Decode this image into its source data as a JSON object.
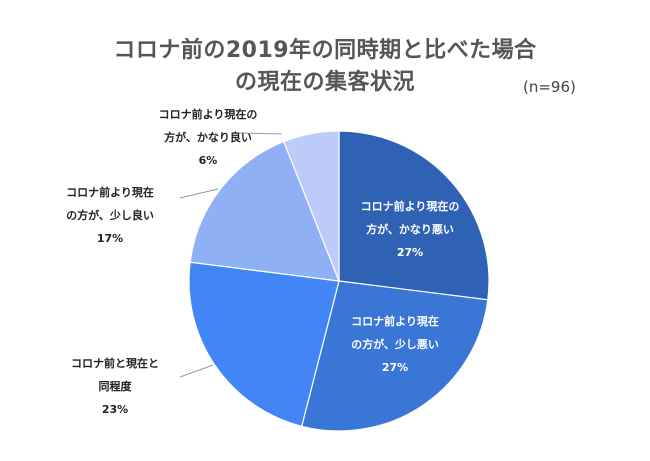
{
  "chart_data": {
    "type": "pie",
    "title_lines": [
      "コロナ前の2019年の同時期と比べた場合",
      "の現在の集客状況"
    ],
    "sample_size": "(n=96)",
    "slices": [
      {
        "label_lines": [
          "コロナ前より現在の",
          "方が、かなり悪い"
        ],
        "value": 27,
        "pct_label": "27%",
        "color": "#2f62b5"
      },
      {
        "label_lines": [
          "コロナ前より現在",
          "の方が、少し悪い"
        ],
        "value": 27,
        "pct_label": "27%",
        "color": "#3a76d6"
      },
      {
        "label_lines": [
          "コロナ前と現在と",
          "同程度"
        ],
        "value": 23,
        "pct_label": "23%",
        "color": "#4285f4"
      },
      {
        "label_lines": [
          "コロナ前より現在",
          "の方が、少し良い"
        ],
        "value": 17,
        "pct_label": "17%",
        "color": "#8fb0f5"
      },
      {
        "label_lines": [
          "コロナ前より現在の",
          "方が、かなり良い"
        ],
        "value": 6,
        "pct_label": "6%",
        "color": "#bccbf7"
      }
    ],
    "start_angle": "12 o'clock",
    "direction": "clockwise"
  }
}
